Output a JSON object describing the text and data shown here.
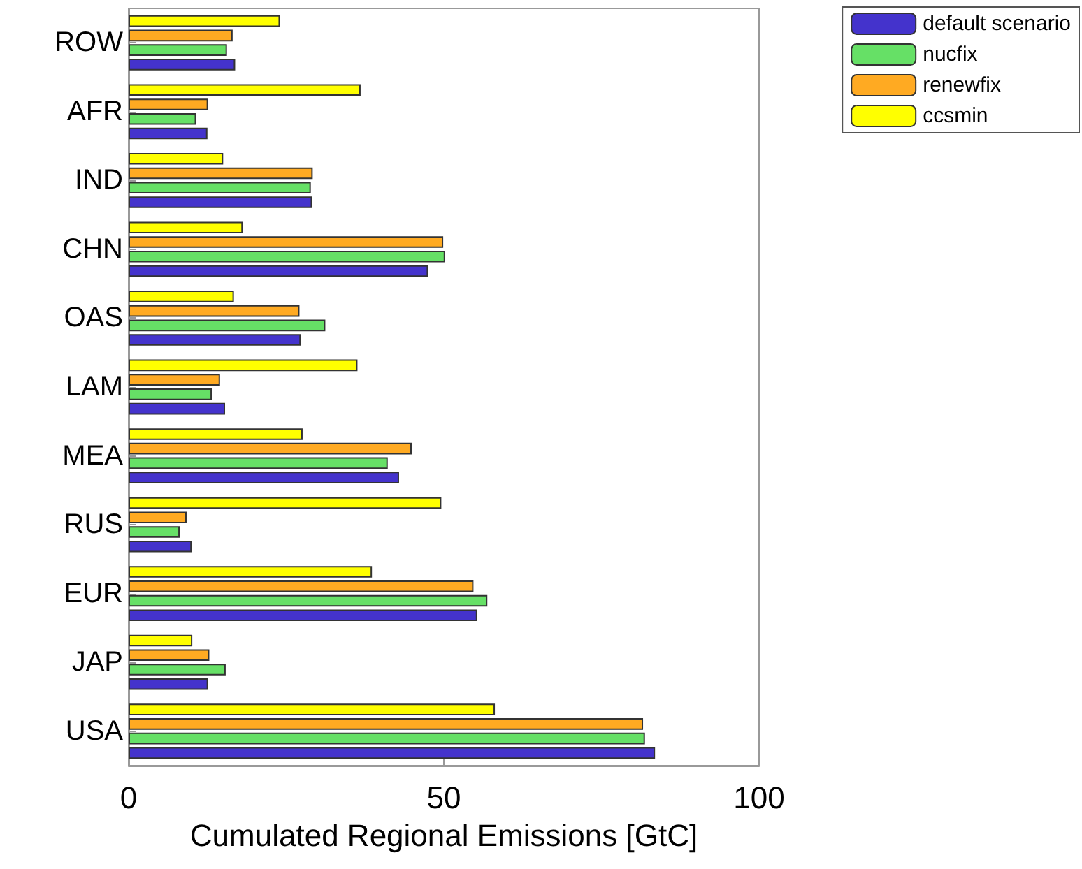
{
  "chart_data": {
    "type": "bar",
    "orientation": "horizontal",
    "xlabel": "Cumulated Regional Emissions [GtC]",
    "categories": [
      "ROW",
      "AFR",
      "IND",
      "CHN",
      "OAS",
      "LAM",
      "MEA",
      "RUS",
      "EUR",
      "JAP",
      "USA"
    ],
    "series": [
      {
        "name": "default scenario",
        "color": "#4433cc",
        "values": [
          16.9,
          12.5,
          29.1,
          47.5,
          27.3,
          15.3,
          42.9,
          10.0,
          55.3,
          12.6,
          83.5
        ]
      },
      {
        "name": "nucfix",
        "color": "#66e066",
        "values": [
          15.6,
          10.7,
          28.9,
          50.2,
          31.2,
          13.2,
          41.1,
          8.1,
          56.9,
          15.4,
          81.9
        ]
      },
      {
        "name": "renewfix",
        "color": "#ffaa22",
        "values": [
          16.5,
          12.6,
          29.2,
          49.9,
          27.1,
          14.5,
          44.9,
          9.2,
          54.7,
          12.8,
          81.6
        ]
      },
      {
        "name": "ccsmin",
        "color": "#ffff00",
        "values": [
          24.0,
          36.8,
          15.0,
          18.1,
          16.7,
          36.3,
          27.6,
          49.6,
          38.6,
          10.1,
          58.1
        ]
      }
    ],
    "xlim": [
      0,
      100
    ],
    "xticks": [
      0,
      50,
      100
    ],
    "grid": false,
    "legend": "top right"
  }
}
